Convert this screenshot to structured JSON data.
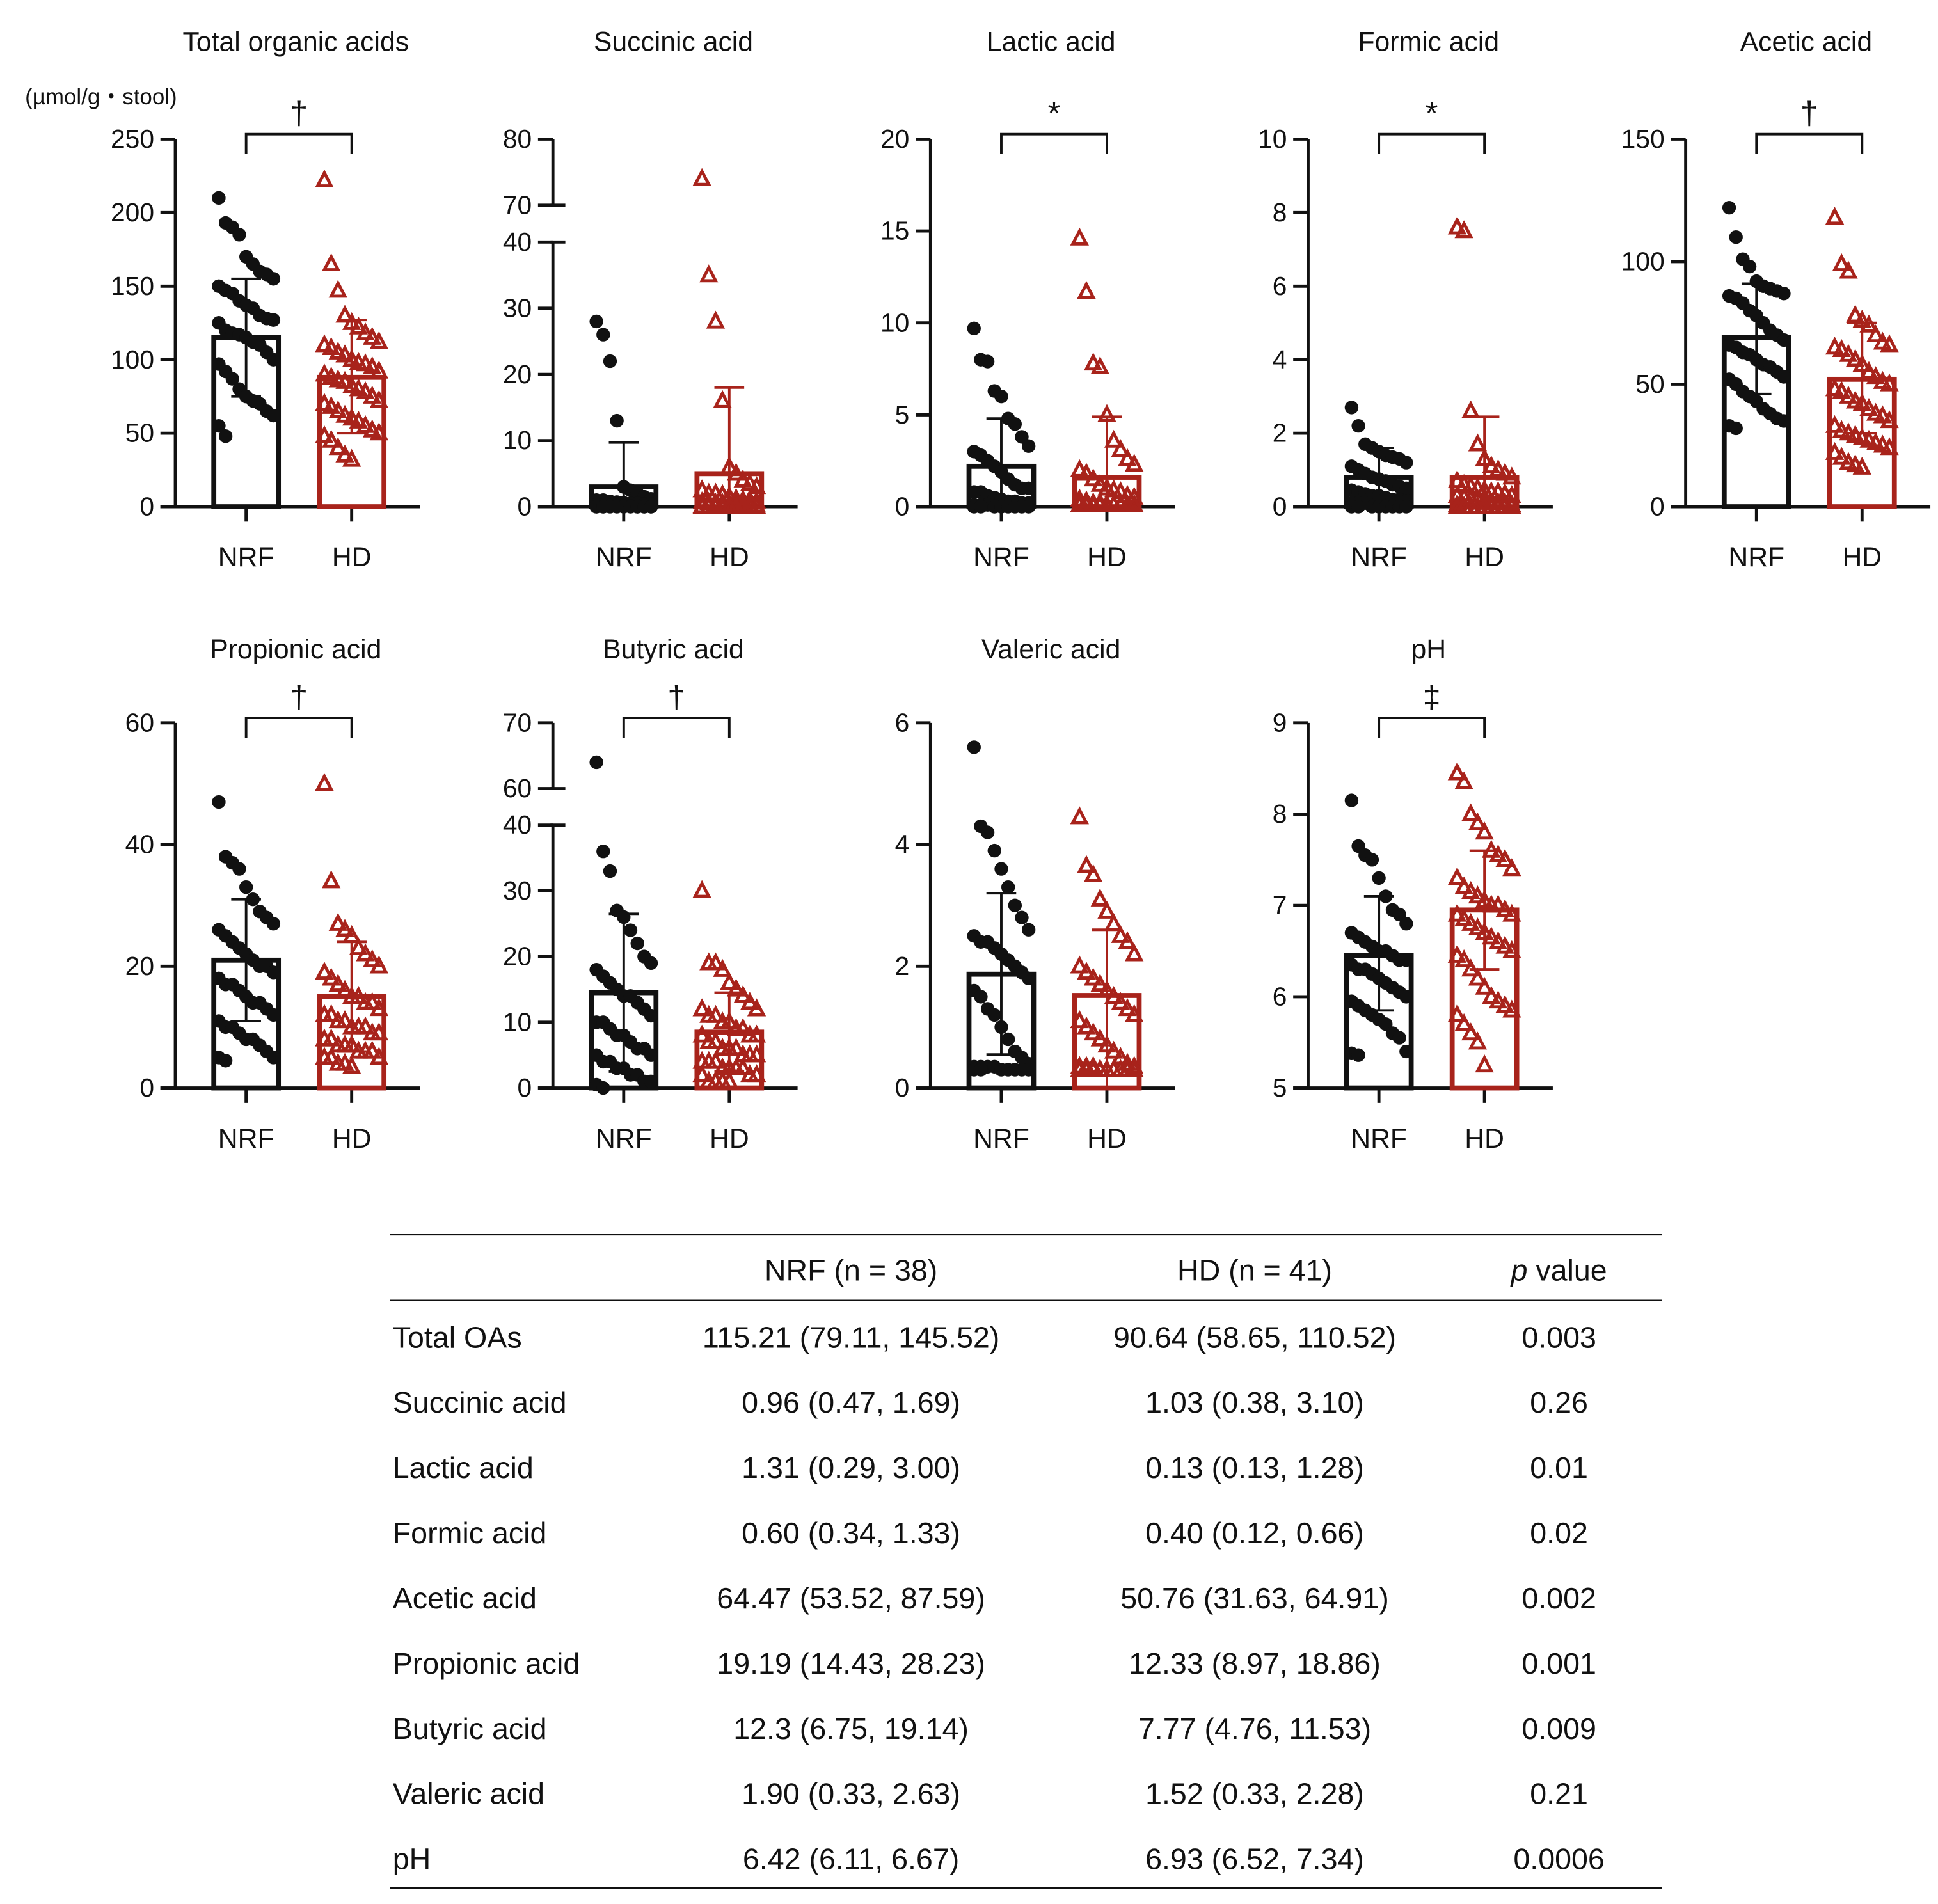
{
  "colors": {
    "nrf": "#111111",
    "hd": "#a8231b"
  },
  "groups": [
    "NRF",
    "HD"
  ],
  "chart_data": [
    {
      "type": "bar",
      "title": "Total organic acids",
      "ylabel": "(µmol/g・stool)",
      "ylim": [
        0,
        250
      ],
      "ticks": [
        0,
        50,
        100,
        150,
        200,
        250
      ],
      "significance": "†",
      "series": [
        {
          "name": "NRF",
          "mean": 115,
          "err": [
            75,
            155
          ],
          "points": [
            210,
            193,
            190,
            185,
            170,
            165,
            160,
            158,
            155,
            150,
            147,
            145,
            140,
            137,
            135,
            130,
            128,
            127,
            125,
            120,
            118,
            117,
            115,
            112,
            110,
            105,
            100,
            97,
            92,
            87,
            80,
            75,
            72,
            70,
            65,
            62,
            55,
            48
          ]
        },
        {
          "name": "HD",
          "mean": 88,
          "err": [
            50,
            127
          ],
          "points": [
            222,
            165,
            147,
            130,
            125,
            122,
            118,
            115,
            112,
            110,
            108,
            105,
            103,
            100,
            98,
            97,
            95,
            92,
            90,
            88,
            86,
            85,
            82,
            80,
            78,
            75,
            72,
            70,
            68,
            65,
            62,
            60,
            58,
            55,
            52,
            50,
            48,
            45,
            40,
            35,
            32
          ]
        }
      ]
    },
    {
      "type": "bar",
      "title": "Succinic acid",
      "ylim": [
        0,
        80
      ],
      "ticks": [
        0,
        10,
        20,
        30,
        40,
        70,
        80
      ],
      "axis_break": [
        40,
        70
      ],
      "significance": "",
      "series": [
        {
          "name": "NRF",
          "mean": 3,
          "err": [
            0,
            9.7
          ],
          "points": [
            28,
            26,
            22,
            13,
            3,
            2.5,
            2,
            1.5,
            1.2,
            1,
            1,
            0.8,
            0.7,
            0.6,
            0.5,
            0.5,
            0.4,
            0.4,
            0.3,
            0.3,
            0.2,
            0.2,
            0.1,
            0.1,
            0,
            0,
            0,
            0,
            0,
            0,
            0,
            0,
            0,
            0,
            0,
            0,
            0,
            0
          ]
        },
        {
          "name": "HD",
          "mean": 5,
          "err": [
            0,
            18
          ],
          "points": [
            74,
            35,
            28,
            16,
            6,
            5,
            4,
            3.5,
            3,
            2.5,
            2,
            2,
            1.8,
            1.5,
            1.2,
            1,
            1,
            0.8,
            0.7,
            0.6,
            0.5,
            0.5,
            0.4,
            0.3,
            0.3,
            0.2,
            0.2,
            0.1,
            0.1,
            0,
            0,
            0,
            0,
            0,
            0,
            0,
            0,
            0,
            0,
            0,
            0
          ]
        }
      ]
    },
    {
      "type": "bar",
      "title": "Lactic acid",
      "ylim": [
        0,
        20
      ],
      "ticks": [
        0,
        5,
        10,
        15,
        20
      ],
      "significance": "*",
      "series": [
        {
          "name": "NRF",
          "mean": 2.2,
          "err": [
            0,
            4.8
          ],
          "points": [
            9.7,
            8,
            7.9,
            6.3,
            6,
            4.8,
            4.5,
            3.8,
            3.3,
            3,
            2.8,
            2.5,
            2.2,
            1.9,
            1.5,
            1.2,
            1,
            1,
            0.8,
            0.8,
            0.6,
            0.5,
            0.4,
            0.3,
            0.3,
            0.2,
            0.2,
            0.1,
            0.1,
            0.1,
            0,
            0,
            0,
            0,
            0,
            0,
            0,
            0
          ]
        },
        {
          "name": "HD",
          "mean": 1.6,
          "err": [
            0,
            4.9
          ],
          "points": [
            14.6,
            11.7,
            7.8,
            7.6,
            5,
            3.6,
            3.1,
            2.6,
            2.3,
            2,
            1.8,
            1.5,
            1.2,
            1,
            0.9,
            0.8,
            0.6,
            0.5,
            0.4,
            0.3,
            0.2,
            0.2,
            0.1,
            0.1,
            0.1,
            0.1,
            0.1,
            0.1,
            0.1,
            0.1,
            0.1,
            0.1,
            0.1,
            0.1,
            0.1,
            0.1,
            0.1,
            0.1,
            0.1,
            0.1,
            0.1
          ]
        }
      ]
    },
    {
      "type": "bar",
      "title": "Formic acid",
      "ylim": [
        0,
        10
      ],
      "ticks": [
        0,
        2,
        4,
        6,
        8,
        10
      ],
      "significance": "*",
      "series": [
        {
          "name": "NRF",
          "mean": 0.8,
          "err": [
            0,
            1.6
          ],
          "points": [
            2.7,
            2.2,
            1.7,
            1.6,
            1.5,
            1.4,
            1.35,
            1.3,
            1.2,
            1.1,
            1,
            0.9,
            0.8,
            0.75,
            0.7,
            0.6,
            0.55,
            0.5,
            0.45,
            0.4,
            0.35,
            0.3,
            0.3,
            0.25,
            0.2,
            0.2,
            0.15,
            0.1,
            0.1,
            0.1,
            0,
            0,
            0,
            0,
            0,
            0,
            0,
            0
          ]
        },
        {
          "name": "HD",
          "mean": 0.8,
          "err": [
            0,
            2.45
          ],
          "points": [
            7.6,
            7.5,
            2.6,
            1.7,
            1.3,
            1.1,
            1,
            0.9,
            0.8,
            0.7,
            0.6,
            0.55,
            0.5,
            0.45,
            0.4,
            0.4,
            0.35,
            0.3,
            0.3,
            0.25,
            0.2,
            0.2,
            0.15,
            0.1,
            0.1,
            0.1,
            0.05,
            0.05,
            0,
            0,
            0,
            0,
            0,
            0,
            0,
            0,
            0,
            0,
            0,
            0,
            0
          ]
        }
      ]
    },
    {
      "type": "bar",
      "title": "Acetic acid",
      "ylim": [
        0,
        150
      ],
      "ticks": [
        0,
        50,
        100,
        150
      ],
      "significance": "†",
      "series": [
        {
          "name": "NRF",
          "mean": 69,
          "err": [
            46,
            91
          ],
          "points": [
            122,
            110,
            101,
            98,
            92,
            90,
            89,
            88,
            87,
            86,
            85,
            83,
            80,
            78,
            75,
            72,
            70,
            68,
            66,
            65,
            63,
            62,
            60,
            58,
            57,
            55,
            53,
            52,
            50,
            47,
            45,
            43,
            40,
            38,
            36,
            35,
            33,
            32
          ]
        },
        {
          "name": "HD",
          "mean": 52,
          "err": [
            30,
            75
          ],
          "points": [
            118,
            99,
            96,
            78,
            76,
            74,
            70,
            67,
            66,
            65,
            64,
            62,
            60,
            58,
            55,
            53,
            51,
            50,
            48,
            47,
            45,
            43,
            42,
            40,
            38,
            37,
            35,
            33,
            31,
            30,
            29,
            28,
            27,
            26,
            25,
            24,
            22,
            20,
            18,
            17,
            16
          ]
        }
      ]
    },
    {
      "type": "bar",
      "title": "Propionic acid",
      "ylim": [
        0,
        60
      ],
      "ticks": [
        0,
        20,
        40,
        60
      ],
      "significance": "†",
      "series": [
        {
          "name": "NRF",
          "mean": 21,
          "err": [
            11,
            31
          ],
          "points": [
            47,
            38,
            37,
            36,
            33,
            31,
            29,
            28,
            27,
            26,
            25,
            24,
            23,
            22,
            21,
            20,
            20,
            19,
            18,
            17,
            17,
            16,
            15,
            14,
            14,
            13,
            12,
            11,
            10,
            10,
            9,
            8,
            8,
            7,
            6,
            5,
            5,
            4.5
          ]
        },
        {
          "name": "HD",
          "mean": 15,
          "err": [
            6,
            24
          ],
          "points": [
            50,
            34,
            27,
            26,
            25,
            23,
            22,
            21,
            20,
            19,
            18,
            17,
            16,
            15,
            15,
            14,
            14,
            13,
            12,
            12,
            11,
            11,
            10,
            10,
            10,
            9,
            9,
            8,
            8,
            7,
            7,
            7,
            6,
            6,
            6,
            5,
            5,
            5,
            4,
            4,
            3.5
          ]
        }
      ]
    },
    {
      "type": "bar",
      "title": "Butyric acid",
      "ylim": [
        0,
        70
      ],
      "ticks": [
        0,
        10,
        20,
        30,
        40,
        60,
        70
      ],
      "axis_break": [
        40,
        60
      ],
      "significance": "†",
      "series": [
        {
          "name": "NRF",
          "mean": 14.5,
          "err": [
            2.5,
            26.5
          ],
          "points": [
            64,
            36,
            33,
            27,
            26,
            24,
            22,
            20,
            19,
            18,
            17,
            16,
            15,
            14,
            14,
            13,
            12,
            11,
            10,
            10,
            9,
            8,
            8,
            7,
            6,
            6,
            5,
            5,
            4,
            4,
            3,
            3,
            2,
            2,
            1,
            1,
            0.5,
            0
          ]
        },
        {
          "name": "HD",
          "mean": 8.5,
          "err": [
            2.5,
            14.5
          ],
          "points": [
            30,
            19,
            19,
            18,
            16,
            15,
            14,
            13,
            12,
            12,
            11,
            11,
            10,
            10,
            9,
            9,
            8,
            8,
            8,
            7,
            7,
            6,
            6,
            6,
            5,
            5,
            5,
            4,
            4,
            4,
            3,
            3,
            3,
            3,
            2,
            2,
            2,
            1,
            1,
            1,
            1
          ]
        }
      ]
    },
    {
      "type": "bar",
      "title": "Valeric acid",
      "ylim": [
        0,
        6
      ],
      "ticks": [
        0,
        2,
        4,
        6
      ],
      "significance": "",
      "series": [
        {
          "name": "NRF",
          "mean": 1.87,
          "err": [
            0.55,
            3.2
          ],
          "points": [
            5.6,
            4.3,
            4.2,
            3.9,
            3.6,
            3.3,
            3.0,
            2.8,
            2.6,
            2.5,
            2.4,
            2.4,
            2.3,
            2.2,
            2.1,
            2.0,
            1.9,
            1.8,
            1.6,
            1.5,
            1.3,
            1.2,
            1.0,
            0.8,
            0.6,
            0.5,
            0.4,
            0.35,
            0.35,
            0.35,
            0.35,
            0.3,
            0.3,
            0.3,
            0.3,
            0.3,
            0.3,
            0.3
          ]
        },
        {
          "name": "HD",
          "mean": 1.52,
          "err": [
            0,
            2.6
          ],
          "points": [
            4.45,
            3.65,
            3.5,
            3.1,
            2.9,
            2.7,
            2.5,
            2.4,
            2.2,
            2.0,
            1.9,
            1.8,
            1.7,
            1.6,
            1.5,
            1.4,
            1.3,
            1.2,
            1.1,
            1.0,
            0.9,
            0.8,
            0.7,
            0.6,
            0.5,
            0.4,
            0.35,
            0.35,
            0.35,
            0.35,
            0.3,
            0.3,
            0.3,
            0.3,
            0.3,
            0.3,
            0.3,
            0.3,
            0.3,
            0.3,
            0.3
          ]
        }
      ]
    },
    {
      "type": "bar",
      "title": "pH",
      "ylim": [
        5,
        9
      ],
      "ticks": [
        5,
        6,
        7,
        8,
        9
      ],
      "significance": "‡",
      "series": [
        {
          "name": "NRF",
          "mean": 6.45,
          "err": [
            5.85,
            7.1
          ],
          "points": [
            8.15,
            7.65,
            7.55,
            7.5,
            7.3,
            7.1,
            6.95,
            6.9,
            6.8,
            6.7,
            6.65,
            6.6,
            6.55,
            6.5,
            6.5,
            6.45,
            6.4,
            6.4,
            6.35,
            6.3,
            6.3,
            6.25,
            6.2,
            6.15,
            6.1,
            6.05,
            6.0,
            5.95,
            5.9,
            5.85,
            5.8,
            5.75,
            5.7,
            5.6,
            5.55,
            5.4,
            5.38,
            5.36
          ]
        },
        {
          "name": "HD",
          "mean": 6.95,
          "err": [
            6.3,
            7.6
          ],
          "points": [
            8.45,
            8.35,
            8.0,
            7.9,
            7.8,
            7.6,
            7.55,
            7.5,
            7.4,
            7.3,
            7.2,
            7.15,
            7.1,
            7.05,
            7.0,
            7.0,
            6.95,
            6.9,
            6.9,
            6.85,
            6.8,
            6.75,
            6.7,
            6.65,
            6.6,
            6.55,
            6.5,
            6.45,
            6.4,
            6.3,
            6.2,
            6.1,
            6.0,
            5.95,
            5.9,
            5.85,
            5.8,
            5.7,
            5.6,
            5.5,
            5.25
          ]
        }
      ]
    }
  ],
  "table": {
    "headers": [
      "",
      "NRF (n = 38)",
      "HD (n = 41)"
    ],
    "p_header_italic": "p",
    "p_header_rest": " value",
    "rows": [
      [
        "Total OAs",
        "115.21 (79.11, 145.52)",
        "90.64 (58.65, 110.52)",
        "0.003"
      ],
      [
        "Succinic acid",
        "0.96 (0.47, 1.69)",
        "1.03 (0.38, 3.10)",
        "0.26"
      ],
      [
        "Lactic acid",
        "1.31 (0.29, 3.00)",
        "0.13 (0.13, 1.28)",
        "0.01"
      ],
      [
        "Formic acid",
        "0.60 (0.34, 1.33)",
        "0.40 (0.12, 0.66)",
        "0.02"
      ],
      [
        "Acetic acid",
        "64.47 (53.52, 87.59)",
        "50.76 (31.63, 64.91)",
        "0.002"
      ],
      [
        "Propionic acid",
        "19.19 (14.43, 28.23)",
        "12.33 (8.97, 18.86)",
        "0.001"
      ],
      [
        "Butyric acid",
        "12.3 (6.75, 19.14)",
        "7.77 (4.76, 11.53)",
        "0.009"
      ],
      [
        "Valeric acid",
        "1.90 (0.33, 2.63)",
        "1.52 (0.33, 2.28)",
        "0.21"
      ],
      [
        "pH",
        "6.42 (6.11, 6.67)",
        "6.93 (6.52, 7.34)",
        "0.0006"
      ]
    ]
  }
}
